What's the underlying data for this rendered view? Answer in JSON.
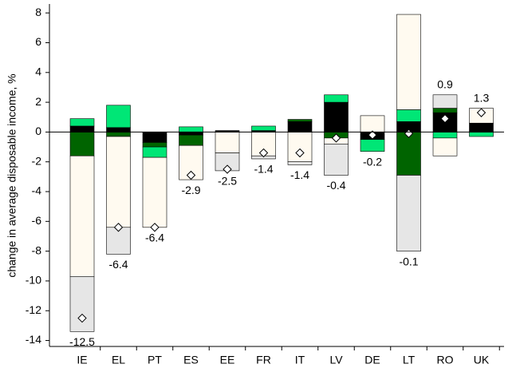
{
  "chart_data": {
    "type": "bar",
    "stacked": true,
    "y_label": "change in average disposable income, %",
    "categories": [
      "IE",
      "EL",
      "PT",
      "ES",
      "EE",
      "FR",
      "IT",
      "LV",
      "DE",
      "LT",
      "RO",
      "UK"
    ],
    "series": [
      {
        "color": "#000000",
        "values": [
          0.4,
          0.3,
          -0.7,
          -0.2,
          0.1,
          0.1,
          0.7,
          2.0,
          -0.5,
          0.7,
          1.3,
          0.6
        ]
      },
      {
        "color": "#006400",
        "values": [
          -1.6,
          -0.3,
          -0.3,
          -0.7,
          0,
          0,
          0.15,
          -0.4,
          0,
          -2.9,
          0.3,
          0
        ]
      },
      {
        "color": "#00e676",
        "values": [
          0.5,
          1.5,
          -0.7,
          0.35,
          0,
          0.3,
          0,
          0.5,
          -0.8,
          0.8,
          -0.4,
          -0.3
        ]
      },
      {
        "color": "#fffaf0",
        "values": [
          -8.1,
          -6.1,
          -4.7,
          -2.3,
          -1.4,
          -1.6,
          -2.0,
          -0.4,
          1.1,
          6.4,
          -1.2,
          1.0
        ]
      },
      {
        "color": "#e6e6e6",
        "values": [
          -3.7,
          -1.8,
          0,
          0,
          -1.2,
          -0.2,
          -0.2,
          -2.1,
          0,
          -5.1,
          0.9,
          0
        ]
      }
    ],
    "totals": {
      "color": "#ffffff",
      "values": [
        -12.5,
        -6.4,
        -6.4,
        -2.9,
        -2.5,
        -1.4,
        -1.4,
        -0.4,
        -0.2,
        -0.1,
        0.9,
        1.3
      ]
    },
    "ylim": [
      -14.4,
      8.6
    ],
    "yticks": [
      -14,
      -12,
      -10,
      -8,
      -6,
      -4,
      -2,
      0,
      2,
      4,
      6,
      8
    ]
  }
}
